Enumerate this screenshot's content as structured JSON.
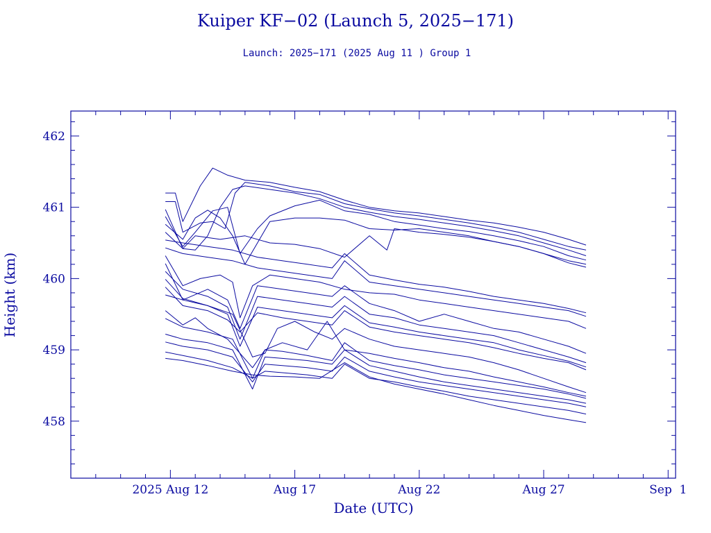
{
  "chart_data": {
    "type": "line",
    "title": "Kuiper KF−02 (Launch 5, 2025−171)",
    "subtitle": "Launch: 2025−171  (2025 Aug 11 )  Group 1",
    "xlabel": "Date (UTC)",
    "ylabel": "Height (km)",
    "xlim": [
      "2025-08-08",
      "2025-09-01.3"
    ],
    "ylim": [
      457.2,
      462.35
    ],
    "x_ticks": [
      {
        "date": "2025-08-12",
        "label": "2025 Aug 12"
      },
      {
        "date": "2025-08-17",
        "label": "Aug 17"
      },
      {
        "date": "2025-08-22",
        "label": "Aug 22"
      },
      {
        "date": "2025-08-27",
        "label": "Aug 27"
      },
      {
        "date": "2025-09-01",
        "label": "Sep  1"
      }
    ],
    "y_ticks": [
      458,
      459,
      460,
      461,
      462
    ],
    "grid": false,
    "legend": "none",
    "series_color": "#0a0aa0",
    "series": [
      {
        "x": [
          "2025-08-11.8",
          "2025-08-12.2",
          "2025-08-12.5",
          "2025-08-13.2",
          "2025-08-13.7",
          "2025-08-14.3",
          "2025-08-15.0",
          "2025-08-16.0",
          "2025-08-17.0",
          "2025-08-18.0",
          "2025-08-19.0",
          "2025-08-20.0",
          "2025-08-21.0",
          "2025-08-22.0",
          "2025-08-23.0",
          "2025-08-24.0",
          "2025-08-25.0",
          "2025-08-26.0",
          "2025-08-27.0",
          "2025-08-28.0",
          "2025-08-28.7"
        ],
        "y": [
          461.2,
          461.2,
          460.8,
          461.3,
          461.55,
          461.45,
          461.38,
          461.35,
          461.28,
          461.22,
          461.1,
          461.0,
          460.95,
          460.92,
          460.87,
          460.82,
          460.78,
          460.72,
          460.65,
          460.55,
          460.47
        ]
      },
      {
        "x": [
          "2025-08-11.8",
          "2025-08-12.2",
          "2025-08-12.5",
          "2025-08-13.2",
          "2025-08-13.7",
          "2025-08-14.2",
          "2025-08-14.6",
          "2025-08-15.0",
          "2025-08-16.0",
          "2025-08-17.0",
          "2025-08-18.0",
          "2025-08-19.0",
          "2025-08-20.0",
          "2025-08-21.0",
          "2025-08-22.0",
          "2025-08-23.0",
          "2025-08-24.0",
          "2025-08-25.0",
          "2025-08-26.0",
          "2025-08-27.0",
          "2025-08-28.0",
          "2025-08-28.7"
        ],
        "y": [
          461.08,
          461.08,
          460.65,
          460.78,
          460.8,
          460.7,
          461.2,
          461.35,
          461.3,
          461.22,
          461.18,
          461.05,
          460.98,
          460.92,
          460.88,
          460.83,
          460.78,
          460.72,
          460.65,
          460.55,
          460.45,
          460.4
        ]
      },
      {
        "x": [
          "2025-08-11.8",
          "2025-08-12.5",
          "2025-08-13.0",
          "2025-08-13.5",
          "2025-08-14.0",
          "2025-08-14.5",
          "2025-08-15.0",
          "2025-08-16.0",
          "2025-08-17.0",
          "2025-08-18.0",
          "2025-08-19.0",
          "2025-08-20.0",
          "2025-08-21.0",
          "2025-08-22.0",
          "2025-08-23.0",
          "2025-08-24.0",
          "2025-08-25.0",
          "2025-08-26.0",
          "2025-08-27.0",
          "2025-08-28.0",
          "2025-08-28.7"
        ],
        "y": [
          460.97,
          460.42,
          460.4,
          460.6,
          461.0,
          461.25,
          461.3,
          461.25,
          461.2,
          461.12,
          461.0,
          460.93,
          460.87,
          460.83,
          460.78,
          460.73,
          460.67,
          460.6,
          460.5,
          460.4,
          460.32
        ]
      },
      {
        "x": [
          "2025-08-11.8",
          "2025-08-12.5",
          "2025-08-13.0",
          "2025-08-13.7",
          "2025-08-14.3",
          "2025-08-14.8",
          "2025-08-15.5",
          "2025-08-16.0",
          "2025-08-17.0",
          "2025-08-18.0",
          "2025-08-19.0",
          "2025-08-20.0",
          "2025-08-21.0",
          "2025-08-22.0",
          "2025-08-23.0",
          "2025-08-24.0",
          "2025-08-25.0",
          "2025-08-26.0",
          "2025-08-27.0",
          "2025-08-28.0",
          "2025-08-28.7"
        ],
        "y": [
          460.87,
          460.45,
          460.65,
          460.95,
          461.0,
          460.35,
          460.7,
          460.88,
          461.02,
          461.1,
          460.95,
          460.9,
          460.8,
          460.75,
          460.7,
          460.66,
          460.6,
          460.53,
          460.45,
          460.32,
          460.26
        ]
      },
      {
        "x": [
          "2025-08-11.8",
          "2025-08-12.5",
          "2025-08-13.0",
          "2025-08-13.5",
          "2025-08-14.0",
          "2025-08-14.5",
          "2025-08-15.0",
          "2025-08-15.5",
          "2025-08-16.0",
          "2025-08-17.0",
          "2025-08-18.0",
          "2025-08-19.0",
          "2025-08-20.0",
          "2025-08-21.0",
          "2025-08-22.0",
          "2025-08-23.0",
          "2025-08-24.0",
          "2025-08-25.0",
          "2025-08-26.0",
          "2025-08-27.0",
          "2025-08-28.0",
          "2025-08-28.7"
        ],
        "y": [
          460.76,
          460.55,
          460.85,
          460.96,
          460.85,
          460.6,
          460.2,
          460.5,
          460.8,
          460.85,
          460.85,
          460.82,
          460.7,
          460.68,
          460.7,
          460.65,
          460.6,
          460.52,
          460.45,
          460.35,
          460.25,
          460.2
        ]
      },
      {
        "x": [
          "2025-08-11.8",
          "2025-08-12.5",
          "2025-08-13.0",
          "2025-08-14.0",
          "2025-08-15.0",
          "2025-08-16.0",
          "2025-08-17.0",
          "2025-08-18.0",
          "2025-08-19.0",
          "2025-08-20.0",
          "2025-08-20.7",
          "2025-08-21.0",
          "2025-08-22.0",
          "2025-08-23.0",
          "2025-08-24.0",
          "2025-08-25.0",
          "2025-08-26.0",
          "2025-08-27.0",
          "2025-08-28.0",
          "2025-08-28.7"
        ],
        "y": [
          460.65,
          460.42,
          460.6,
          460.55,
          460.6,
          460.5,
          460.48,
          460.42,
          460.3,
          460.6,
          460.4,
          460.7,
          460.65,
          460.62,
          460.58,
          460.52,
          460.45,
          460.35,
          460.22,
          460.16
        ]
      },
      {
        "x": [
          "2025-08-11.8",
          "2025-08-12.5",
          "2025-08-13.5",
          "2025-08-14.5",
          "2025-08-15.5",
          "2025-08-16.5",
          "2025-08-17.5",
          "2025-08-18.5",
          "2025-08-19.0",
          "2025-08-20.0",
          "2025-08-21.0",
          "2025-08-22.0",
          "2025-08-23.0",
          "2025-08-24.0",
          "2025-08-25.0",
          "2025-08-26.0",
          "2025-08-27.0",
          "2025-08-28.0",
          "2025-08-28.7"
        ],
        "y": [
          460.54,
          460.5,
          460.45,
          460.4,
          460.3,
          460.25,
          460.2,
          460.15,
          460.35,
          460.05,
          459.98,
          459.92,
          459.88,
          459.82,
          459.75,
          459.7,
          459.65,
          459.58,
          459.52
        ]
      },
      {
        "x": [
          "2025-08-11.8",
          "2025-08-12.5",
          "2025-08-13.5",
          "2025-08-14.5",
          "2025-08-15.5",
          "2025-08-16.5",
          "2025-08-17.5",
          "2025-08-18.5",
          "2025-08-19.0",
          "2025-08-20.0",
          "2025-08-21.0",
          "2025-08-22.0",
          "2025-08-23.0",
          "2025-08-24.0",
          "2025-08-25.0",
          "2025-08-26.0",
          "2025-08-27.0",
          "2025-08-28.0",
          "2025-08-28.7"
        ],
        "y": [
          460.43,
          460.35,
          460.3,
          460.25,
          460.15,
          460.1,
          460.05,
          460.0,
          460.25,
          459.95,
          459.9,
          459.85,
          459.8,
          459.75,
          459.7,
          459.65,
          459.6,
          459.55,
          459.47
        ]
      },
      {
        "x": [
          "2025-08-11.8",
          "2025-08-12.5",
          "2025-08-13.2",
          "2025-08-14.0",
          "2025-08-14.5",
          "2025-08-14.8",
          "2025-08-15.3",
          "2025-08-16.0",
          "2025-08-17.0",
          "2025-08-18.0",
          "2025-08-19.0",
          "2025-08-20.0",
          "2025-08-21.0",
          "2025-08-22.0",
          "2025-08-23.0",
          "2025-08-24.0",
          "2025-08-25.0",
          "2025-08-26.0",
          "2025-08-27.0",
          "2025-08-28.0",
          "2025-08-28.7"
        ],
        "y": [
          460.32,
          459.9,
          460.0,
          460.05,
          459.95,
          459.45,
          459.9,
          460.05,
          460.0,
          459.95,
          459.85,
          459.8,
          459.78,
          459.7,
          459.65,
          459.6,
          459.55,
          459.5,
          459.45,
          459.4,
          459.3
        ]
      },
      {
        "x": [
          "2025-08-11.8",
          "2025-08-12.5",
          "2025-08-13.5",
          "2025-08-14.3",
          "2025-08-14.8",
          "2025-08-15.5",
          "2025-08-16.5",
          "2025-08-17.5",
          "2025-08-18.5",
          "2025-08-19.0",
          "2025-08-20.0",
          "2025-08-21.0",
          "2025-08-22.0",
          "2025-08-23.0",
          "2025-08-24.0",
          "2025-08-25.0",
          "2025-08-26.0",
          "2025-08-27.0",
          "2025-08-28.0",
          "2025-08-28.7"
        ],
        "y": [
          460.21,
          459.7,
          459.85,
          459.7,
          459.3,
          459.9,
          459.85,
          459.8,
          459.75,
          459.9,
          459.65,
          459.55,
          459.4,
          459.5,
          459.4,
          459.3,
          459.25,
          459.15,
          459.05,
          458.95
        ]
      },
      {
        "x": [
          "2025-08-11.8",
          "2025-08-12.5",
          "2025-08-13.5",
          "2025-08-14.3",
          "2025-08-14.8",
          "2025-08-15.5",
          "2025-08-16.5",
          "2025-08-17.5",
          "2025-08-18.5",
          "2025-08-19.0",
          "2025-08-20.0",
          "2025-08-21.0",
          "2025-08-22.0",
          "2025-08-23.0",
          "2025-08-24.0",
          "2025-08-25.0",
          "2025-08-26.0",
          "2025-08-27.0",
          "2025-08-28.0",
          "2025-08-28.7"
        ],
        "y": [
          460.1,
          459.85,
          459.75,
          459.6,
          459.15,
          459.75,
          459.7,
          459.65,
          459.6,
          459.75,
          459.5,
          459.45,
          459.35,
          459.3,
          459.25,
          459.2,
          459.1,
          459.0,
          458.9,
          458.82
        ]
      },
      {
        "x": [
          "2025-08-11.8",
          "2025-08-12.5",
          "2025-08-13.5",
          "2025-08-14.3",
          "2025-08-14.8",
          "2025-08-15.5",
          "2025-08-16.5",
          "2025-08-17.5",
          "2025-08-18.5",
          "2025-08-19.0",
          "2025-08-20.0",
          "2025-08-21.0",
          "2025-08-22.0",
          "2025-08-23.0",
          "2025-08-24.0",
          "2025-08-25.0",
          "2025-08-26.0",
          "2025-08-27.0",
          "2025-08-28.0",
          "2025-08-28.7"
        ],
        "y": [
          459.99,
          459.72,
          459.62,
          459.5,
          459.05,
          459.6,
          459.55,
          459.5,
          459.45,
          459.62,
          459.38,
          459.32,
          459.25,
          459.2,
          459.15,
          459.1,
          459.0,
          458.92,
          458.84,
          458.76
        ]
      },
      {
        "x": [
          "2025-08-11.8",
          "2025-08-12.5",
          "2025-08-13.5",
          "2025-08-14.3",
          "2025-08-14.8",
          "2025-08-15.5",
          "2025-08-16.5",
          "2025-08-17.5",
          "2025-08-18.5",
          "2025-08-19.0",
          "2025-08-20.0",
          "2025-08-21.0",
          "2025-08-22.0",
          "2025-08-23.0",
          "2025-08-24.0",
          "2025-08-25.0",
          "2025-08-26.0",
          "2025-08-27.0",
          "2025-08-28.0",
          "2025-08-28.7"
        ],
        "y": [
          459.88,
          459.62,
          459.55,
          459.42,
          459.25,
          459.52,
          459.45,
          459.4,
          459.35,
          459.55,
          459.32,
          459.25,
          459.2,
          459.15,
          459.1,
          459.03,
          458.95,
          458.88,
          458.82,
          458.72
        ]
      },
      {
        "x": [
          "2025-08-11.8",
          "2025-08-12.5",
          "2025-08-13.5",
          "2025-08-14.5",
          "2025-08-15.3",
          "2025-08-15.8",
          "2025-08-16.3",
          "2025-08-17.0",
          "2025-08-17.8",
          "2025-08-18.5",
          "2025-08-19.0",
          "2025-08-20.0",
          "2025-08-21.0",
          "2025-08-22.0",
          "2025-08-23.0",
          "2025-08-24.0",
          "2025-08-25.0",
          "2025-08-26.0",
          "2025-08-27.0",
          "2025-08-28.0",
          "2025-08-28.7"
        ],
        "y": [
          459.77,
          459.7,
          459.62,
          459.5,
          458.9,
          458.95,
          459.3,
          459.4,
          459.25,
          459.15,
          459.3,
          459.15,
          459.05,
          459.0,
          458.95,
          458.9,
          458.82,
          458.72,
          458.6,
          458.48,
          458.4
        ]
      },
      {
        "x": [
          "2025-08-11.8",
          "2025-08-12.5",
          "2025-08-13.0",
          "2025-08-13.5",
          "2025-08-14.3",
          "2025-08-15.3",
          "2025-08-15.8",
          "2025-08-16.5",
          "2025-08-17.5",
          "2025-08-18.3",
          "2025-08-19.0",
          "2025-08-20.0",
          "2025-08-21.0",
          "2025-08-22.0",
          "2025-08-23.0",
          "2025-08-24.0",
          "2025-08-25.0",
          "2025-08-26.0",
          "2025-08-27.0",
          "2025-08-28.0",
          "2025-08-28.7"
        ],
        "y": [
          459.55,
          459.35,
          459.45,
          459.3,
          459.15,
          458.75,
          459.0,
          459.1,
          459.0,
          459.4,
          459.0,
          458.95,
          458.88,
          458.82,
          458.75,
          458.7,
          458.62,
          458.55,
          458.48,
          458.4,
          458.35
        ]
      },
      {
        "x": [
          "2025-08-11.8",
          "2025-08-12.5",
          "2025-08-13.5",
          "2025-08-14.5",
          "2025-08-15.3",
          "2025-08-15.8",
          "2025-08-16.5",
          "2025-08-17.5",
          "2025-08-18.5",
          "2025-08-19.0",
          "2025-08-20.0",
          "2025-08-21.0",
          "2025-08-22.0",
          "2025-08-23.0",
          "2025-08-24.0",
          "2025-08-25.0",
          "2025-08-26.0",
          "2025-08-27.0",
          "2025-08-28.0",
          "2025-08-28.7"
        ],
        "y": [
          459.44,
          459.32,
          459.25,
          459.15,
          458.6,
          459.0,
          458.98,
          458.92,
          458.85,
          459.1,
          458.85,
          458.78,
          458.72,
          458.65,
          458.6,
          458.55,
          458.5,
          458.45,
          458.38,
          458.32
        ]
      },
      {
        "x": [
          "2025-08-11.8",
          "2025-08-12.5",
          "2025-08-13.5",
          "2025-08-14.5",
          "2025-08-15.3",
          "2025-08-15.8",
          "2025-08-16.5",
          "2025-08-17.5",
          "2025-08-18.5",
          "2025-08-19.0",
          "2025-08-20.0",
          "2025-08-21.0",
          "2025-08-22.0",
          "2025-08-23.0",
          "2025-08-24.0",
          "2025-08-25.0",
          "2025-08-26.0",
          "2025-08-27.0",
          "2025-08-28.0",
          "2025-08-28.7"
        ],
        "y": [
          459.22,
          459.15,
          459.1,
          459.0,
          458.45,
          458.9,
          458.88,
          458.85,
          458.8,
          459.0,
          458.78,
          458.7,
          458.62,
          458.55,
          458.5,
          458.45,
          458.4,
          458.35,
          458.3,
          458.25
        ]
      },
      {
        "x": [
          "2025-08-11.8",
          "2025-08-12.5",
          "2025-08-13.5",
          "2025-08-14.5",
          "2025-08-15.3",
          "2025-08-15.8",
          "2025-08-16.5",
          "2025-08-17.5",
          "2025-08-18.5",
          "2025-08-19.0",
          "2025-08-20.0",
          "2025-08-21.0",
          "2025-08-22.0",
          "2025-08-23.0",
          "2025-08-24.0",
          "2025-08-25.0",
          "2025-08-26.0",
          "2025-08-27.0",
          "2025-08-28.0",
          "2025-08-28.7"
        ],
        "y": [
          459.11,
          459.05,
          459.0,
          458.9,
          458.55,
          458.8,
          458.78,
          458.75,
          458.7,
          458.9,
          458.7,
          458.62,
          458.55,
          458.5,
          458.45,
          458.4,
          458.35,
          458.3,
          458.25,
          458.2
        ]
      },
      {
        "x": [
          "2025-08-11.8",
          "2025-08-12.5",
          "2025-08-13.5",
          "2025-08-14.5",
          "2025-08-15.3",
          "2025-08-15.8",
          "2025-08-16.5",
          "2025-08-17.5",
          "2025-08-18.5",
          "2025-08-19.0",
          "2025-08-20.0",
          "2025-08-21.0",
          "2025-08-22.0",
          "2025-08-23.0",
          "2025-08-24.0",
          "2025-08-25.0",
          "2025-08-26.0",
          "2025-08-27.0",
          "2025-08-28.0",
          "2025-08-28.7"
        ],
        "y": [
          458.97,
          458.92,
          458.85,
          458.75,
          458.6,
          458.7,
          458.68,
          458.65,
          458.6,
          458.8,
          458.6,
          458.55,
          458.48,
          458.42,
          458.35,
          458.3,
          458.25,
          458.2,
          458.15,
          458.1
        ]
      },
      {
        "x": [
          "2025-08-11.8",
          "2025-08-12.5",
          "2025-08-13.5",
          "2025-08-14.5",
          "2025-08-15.3",
          "2025-08-16.0",
          "2025-08-17.0",
          "2025-08-18.0",
          "2025-08-19.0",
          "2025-08-20.0",
          "2025-08-21.0",
          "2025-08-22.0",
          "2025-08-23.0",
          "2025-08-24.0",
          "2025-08-25.0",
          "2025-08-26.0",
          "2025-08-27.0",
          "2025-08-28.0",
          "2025-08-28.7"
        ],
        "y": [
          458.88,
          458.85,
          458.78,
          458.7,
          458.65,
          458.63,
          458.62,
          458.6,
          458.82,
          458.62,
          458.52,
          458.45,
          458.38,
          458.3,
          458.22,
          458.15,
          458.08,
          458.02,
          457.98
        ]
      }
    ]
  }
}
